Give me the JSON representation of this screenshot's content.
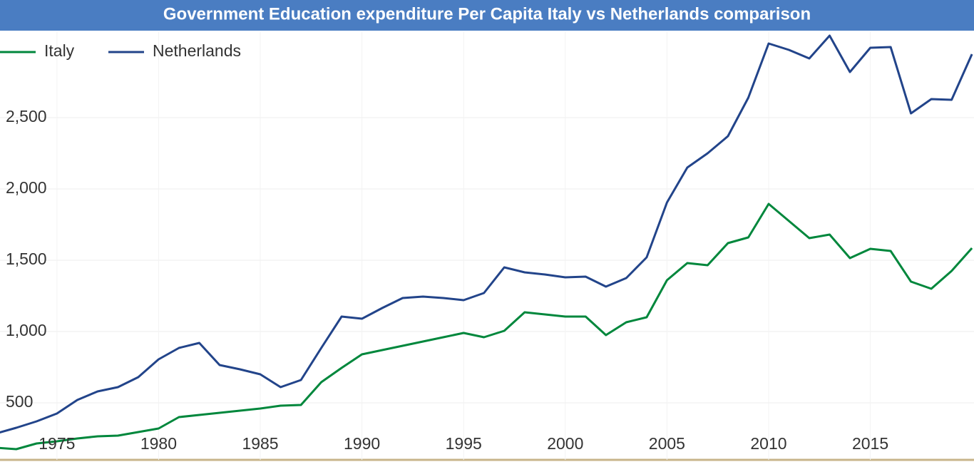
{
  "chart_data": {
    "type": "line",
    "title": "Government Education expenditure Per Capita Italy vs Netherlands comparison",
    "x": [
      1972,
      1973,
      1974,
      1975,
      1976,
      1977,
      1978,
      1979,
      1980,
      1981,
      1982,
      1983,
      1984,
      1985,
      1986,
      1987,
      1988,
      1989,
      1990,
      1991,
      1992,
      1993,
      1994,
      1995,
      1996,
      1997,
      1998,
      1999,
      2000,
      2001,
      2002,
      2003,
      2004,
      2005,
      2006,
      2007,
      2008,
      2009,
      2010,
      2011,
      2012,
      2013,
      2014,
      2015,
      2016,
      2017,
      2018,
      2019,
      2020
    ],
    "series": [
      {
        "name": "Italy",
        "color": "#00873c",
        "values": [
          185,
          175,
          215,
          230,
          250,
          265,
          270,
          295,
          320,
          400,
          415,
          430,
          445,
          460,
          480,
          485,
          645,
          745,
          840,
          870,
          900,
          930,
          960,
          990,
          960,
          1005,
          1135,
          1120,
          1105,
          1105,
          975,
          1065,
          1100,
          1360,
          1480,
          1465,
          1620,
          1660,
          1895,
          1775,
          1655,
          1680,
          1515,
          1580,
          1565,
          1350,
          1300,
          1425,
          1585
        ]
      },
      {
        "name": "Netherlands",
        "color": "#22448a",
        "values": [
          285,
          325,
          370,
          425,
          520,
          580,
          610,
          680,
          805,
          885,
          920,
          765,
          735,
          700,
          610,
          660,
          885,
          1105,
          1090,
          1165,
          1235,
          1245,
          1235,
          1220,
          1270,
          1450,
          1415,
          1400,
          1380,
          1385,
          1315,
          1375,
          1520,
          1905,
          2150,
          2250,
          2370,
          2640,
          3020,
          2975,
          2915,
          3075,
          2820,
          2990,
          2995,
          2530,
          2630,
          2625,
          2945
        ]
      }
    ],
    "xlim": [
      1972.2,
      2020.1
    ],
    "xticks": [
      1975,
      1980,
      1985,
      1990,
      1995,
      2000,
      2005,
      2010,
      2015
    ],
    "ylim": [
      100,
      3100
    ],
    "yticks": [
      500,
      {
        "value": 1000,
        "label": "1,000"
      },
      {
        "value": 1500,
        "label": "1,500"
      },
      {
        "value": 2000,
        "label": "2,000"
      },
      {
        "value": 2500,
        "label": "2,500"
      }
    ],
    "grid": true,
    "legend": "top-left"
  }
}
